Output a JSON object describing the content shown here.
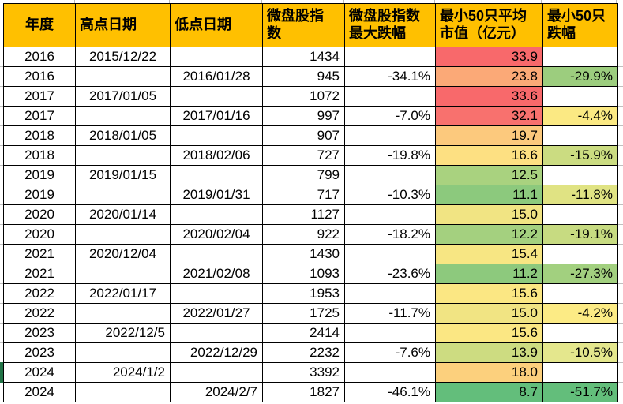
{
  "colors": {
    "header_bg": "#FFC000",
    "header_text": "#000000",
    "cell_border": "#000000",
    "grid_line": "#BFBFBF",
    "selection_marker": "#217346",
    "scale_red": "#F8696B",
    "scale_yellow": "#FFEB84",
    "scale_green": "#63BE7B"
  },
  "table": {
    "columns": [
      {
        "key": "year",
        "label": "年度"
      },
      {
        "key": "high_date",
        "label": "高点日期"
      },
      {
        "key": "low_date",
        "label": "低点日期"
      },
      {
        "key": "index",
        "label": "微盘股指\n数"
      },
      {
        "key": "index_drop",
        "label": "微盘股指数\n最大跌幅"
      },
      {
        "key": "cap",
        "label": "最小50只平均\n市值（亿元）"
      },
      {
        "key": "drop50",
        "label": "最小50只\n跌幅"
      }
    ],
    "rows": [
      {
        "year": "2016",
        "high_date": "2015/12/22",
        "low_date": "",
        "index": "1434",
        "index_drop": "",
        "cap": "33.9",
        "cap_bg": "#F8696B",
        "drop50": "",
        "drop50_bg": "",
        "date_align": "center"
      },
      {
        "year": "2016",
        "high_date": "",
        "low_date": "2016/01/28",
        "index": "945",
        "index_drop": "-34.1%",
        "cap": "23.8",
        "cap_bg": "#FBA977",
        "drop50": "-29.9%",
        "drop50_bg": "#9CCD7E",
        "date_align": "center"
      },
      {
        "year": "2017",
        "high_date": "2017/01/05",
        "low_date": "",
        "index": "1072",
        "index_drop": "",
        "cap": "33.6",
        "cap_bg": "#F8696B",
        "drop50": "",
        "drop50_bg": "",
        "date_align": "center"
      },
      {
        "year": "2017",
        "high_date": "",
        "low_date": "2017/01/16",
        "index": "997",
        "index_drop": "-7.0%",
        "cap": "32.1",
        "cap_bg": "#F8716E",
        "drop50": "-4.4%",
        "drop50_bg": "#FBE983",
        "date_align": "center"
      },
      {
        "year": "2018",
        "high_date": "2018/01/05",
        "low_date": "",
        "index": "907",
        "index_drop": "",
        "cap": "19.7",
        "cap_bg": "#FCC97D",
        "drop50": "",
        "drop50_bg": "",
        "date_align": "center"
      },
      {
        "year": "2018",
        "high_date": "",
        "low_date": "2018/02/06",
        "index": "727",
        "index_drop": "-19.8%",
        "cap": "16.6",
        "cap_bg": "#FDE082",
        "drop50": "-15.9%",
        "drop50_bg": "#CBDC81",
        "date_align": "center"
      },
      {
        "year": "2019",
        "high_date": "2019/01/15",
        "low_date": "",
        "index": "799",
        "index_drop": "",
        "cap": "12.5",
        "cap_bg": "#A9D27F",
        "drop50": "",
        "drop50_bg": "",
        "date_align": "center"
      },
      {
        "year": "2019",
        "high_date": "",
        "low_date": "2019/01/31",
        "index": "717",
        "index_drop": "-10.3%",
        "cap": "11.1",
        "cap_bg": "#8CC97D",
        "drop50": "-11.8%",
        "drop50_bg": "#E0E383",
        "date_align": "center"
      },
      {
        "year": "2020",
        "high_date": "2020/01/14",
        "low_date": "",
        "index": "1127",
        "index_drop": "",
        "cap": "15.0",
        "cap_bg": "#F1E483",
        "drop50": "",
        "drop50_bg": "",
        "date_align": "center"
      },
      {
        "year": "2020",
        "high_date": "",
        "low_date": "2020/02/04",
        "index": "922",
        "index_drop": "-18.2%",
        "cap": "12.2",
        "cap_bg": "#A4D07F",
        "drop50": "-19.1%",
        "drop50_bg": "#C7DB81",
        "date_align": "center"
      },
      {
        "year": "2021",
        "high_date": "2020/12/04",
        "low_date": "",
        "index": "1430",
        "index_drop": "",
        "cap": "15.4",
        "cap_bg": "#F7E683",
        "drop50": "",
        "drop50_bg": "",
        "date_align": "center"
      },
      {
        "year": "2021",
        "high_date": "",
        "low_date": "2021/02/08",
        "index": "1093",
        "index_drop": "-23.6%",
        "cap": "11.2",
        "cap_bg": "#8DC97D",
        "drop50": "-27.3%",
        "drop50_bg": "#A2D07F",
        "date_align": "center"
      },
      {
        "year": "2022",
        "high_date": "2022/01/17",
        "low_date": "",
        "index": "1953",
        "index_drop": "",
        "cap": "15.6",
        "cap_bg": "#FBE783",
        "drop50": "",
        "drop50_bg": "",
        "date_align": "center"
      },
      {
        "year": "2022",
        "high_date": "",
        "low_date": "2022/01/27",
        "index": "1725",
        "index_drop": "-11.7%",
        "cap": "15.0",
        "cap_bg": "#F1E483",
        "drop50": "-4.2%",
        "drop50_bg": "#FCEB85",
        "date_align": "center"
      },
      {
        "year": "2023",
        "high_date": "2022/12/5",
        "low_date": "",
        "index": "2414",
        "index_drop": "",
        "cap": "15.6",
        "cap_bg": "#FBE783",
        "drop50": "",
        "drop50_bg": "",
        "date_align": "right"
      },
      {
        "year": "2023",
        "high_date": "",
        "low_date": "2022/12/29",
        "index": "2232",
        "index_drop": "-7.6%",
        "cap": "13.9",
        "cap_bg": "#CDDC81",
        "drop50": "-10.5%",
        "drop50_bg": "#E4E78D",
        "date_align": "right"
      },
      {
        "year": "2024",
        "high_date": "2024/1/2",
        "low_date": "",
        "index": "3392",
        "index_drop": "",
        "cap": "18.0",
        "cap_bg": "#FCD07D",
        "drop50": "",
        "drop50_bg": "",
        "date_align": "right"
      },
      {
        "year": "2024",
        "high_date": "",
        "low_date": "2024/2/7",
        "index": "1827",
        "index_drop": "-46.1%",
        "cap": "8.7",
        "cap_bg": "#63BE7B",
        "drop50": "-51.7%",
        "drop50_bg": "#63BE7B",
        "date_align": "right"
      }
    ]
  }
}
